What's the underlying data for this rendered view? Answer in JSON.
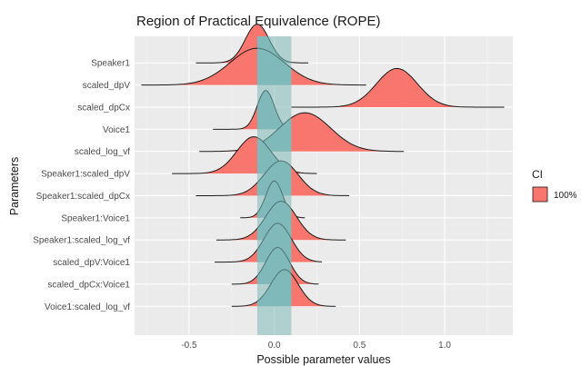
{
  "chart_data": {
    "type": "area",
    "title": "Region of Practical Equivalence (ROPE)",
    "xlabel": "Possible parameter values",
    "ylabel": "Parameters",
    "xlim": [
      -0.82,
      1.4
    ],
    "x_ticks": [
      -0.5,
      0.0,
      0.5,
      1.0
    ],
    "x_tick_labels": [
      "-0.5",
      "0.0",
      "0.5",
      "1.0"
    ],
    "rope": [
      -0.1,
      0.1
    ],
    "grid": true,
    "legend": {
      "title": "CI",
      "placement": "right",
      "entries": [
        {
          "label": "100%",
          "color": "#f8766d"
        }
      ]
    },
    "colors": {
      "ci_fill": "#f8766d",
      "rope": "#7fb9b9",
      "panel": "#ebebeb"
    },
    "series": [
      {
        "name": "Speaker1",
        "mean": -0.1,
        "sd": 0.07,
        "lo": -0.46,
        "hi": 0.2,
        "height": 1.0
      },
      {
        "name": "scaled_dpV",
        "mean": -0.1,
        "sd": 0.16,
        "lo": -0.78,
        "hi": 0.54,
        "height": 0.95
      },
      {
        "name": "scaled_dpCx",
        "mean": 0.72,
        "sd": 0.12,
        "lo": 0.1,
        "hi": 1.35,
        "height": 1.0
      },
      {
        "name": "Voice1",
        "mean": -0.05,
        "sd": 0.05,
        "lo": -0.36,
        "hi": 0.13,
        "height": 1.0
      },
      {
        "name": "scaled_log_vf",
        "mean": 0.18,
        "sd": 0.15,
        "lo": -0.44,
        "hi": 0.76,
        "height": 1.0
      },
      {
        "name": "Speaker1:scaled_dpV",
        "mean": -0.12,
        "sd": 0.1,
        "lo": -0.6,
        "hi": 0.25,
        "height": 0.95
      },
      {
        "name": "Speaker1:scaled_dpCx",
        "mean": 0.04,
        "sd": 0.1,
        "lo": -0.46,
        "hi": 0.44,
        "height": 0.9
      },
      {
        "name": "Speaker1:Voice1",
        "mean": 0.0,
        "sd": 0.05,
        "lo": -0.2,
        "hi": 0.18,
        "height": 0.95
      },
      {
        "name": "Speaker1:scaled_log_vf",
        "mean": 0.04,
        "sd": 0.09,
        "lo": -0.34,
        "hi": 0.42,
        "height": 1.0
      },
      {
        "name": "scaled_dpV:Voice1",
        "mean": 0.02,
        "sd": 0.08,
        "lo": -0.35,
        "hi": 0.28,
        "height": 1.0
      },
      {
        "name": "scaled_dpCx:Voice1",
        "mean": 0.02,
        "sd": 0.07,
        "lo": -0.25,
        "hi": 0.26,
        "height": 0.95
      },
      {
        "name": "Voice1:scaled_log_vf",
        "mean": 0.06,
        "sd": 0.08,
        "lo": -0.25,
        "hi": 0.36,
        "height": 0.95
      }
    ]
  }
}
